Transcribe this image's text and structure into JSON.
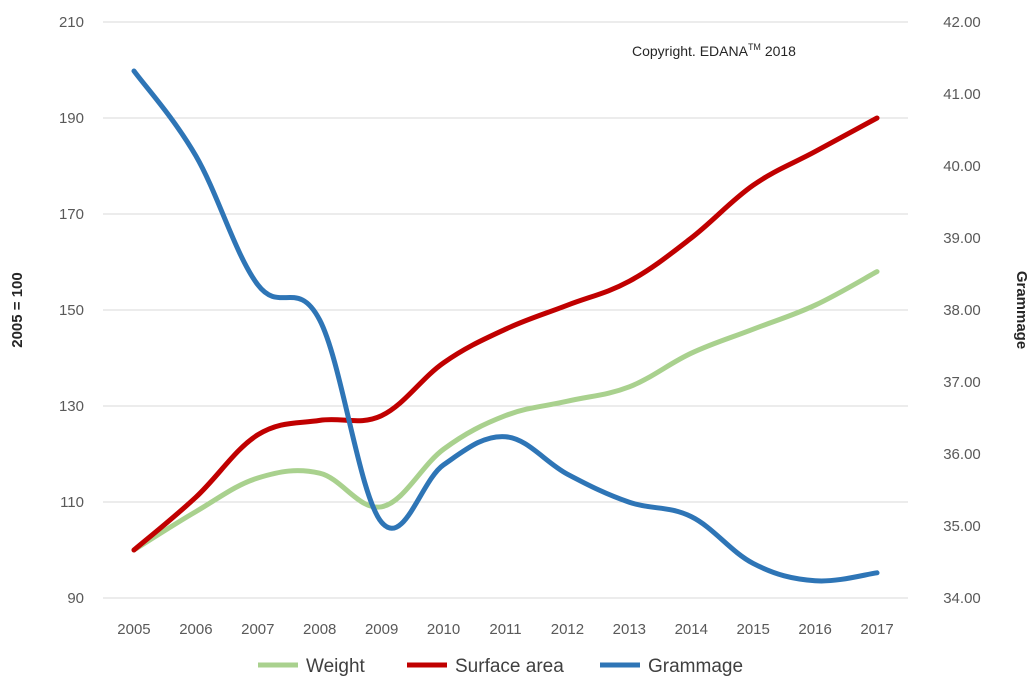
{
  "chart_data": {
    "type": "line",
    "title": "",
    "categories": [
      "2005",
      "2006",
      "2007",
      "2008",
      "2009",
      "2010",
      "2011",
      "2012",
      "2013",
      "2014",
      "2015",
      "2016",
      "2017"
    ],
    "ylabel": "2005 = 100",
    "y2label": "Grammage",
    "ylim": [
      90,
      210
    ],
    "yticks": [
      "90",
      "110",
      "130",
      "150",
      "170",
      "190",
      "210"
    ],
    "y2lim": [
      34,
      42
    ],
    "y2ticks": [
      "34.00",
      "35.00",
      "36.00",
      "37.00",
      "38.00",
      "39.00",
      "40.00",
      "41.00",
      "42.00"
    ],
    "grid": true,
    "legend_position": "bottom",
    "annotation": {
      "text": "Copyright. EDANA",
      "sup": "TM",
      "suffix": " 2018"
    },
    "series": [
      {
        "name": "Weight",
        "axis": "left",
        "color": "#a9d18e",
        "values": [
          100,
          108,
          115,
          116,
          109,
          121,
          128,
          131,
          134,
          141,
          146,
          151,
          158
        ]
      },
      {
        "name": "Surface area",
        "axis": "left",
        "color": "#c00000",
        "values": [
          100,
          111,
          124,
          127,
          128,
          139,
          146,
          151,
          156,
          165,
          176,
          183,
          190
        ]
      },
      {
        "name": "Grammage",
        "axis": "right",
        "color": "#2e75b6",
        "values": [
          41.32,
          40.14,
          38.35,
          37.86,
          35.05,
          35.85,
          36.24,
          35.72,
          35.33,
          35.13,
          34.48,
          34.24,
          34.35
        ]
      }
    ]
  }
}
